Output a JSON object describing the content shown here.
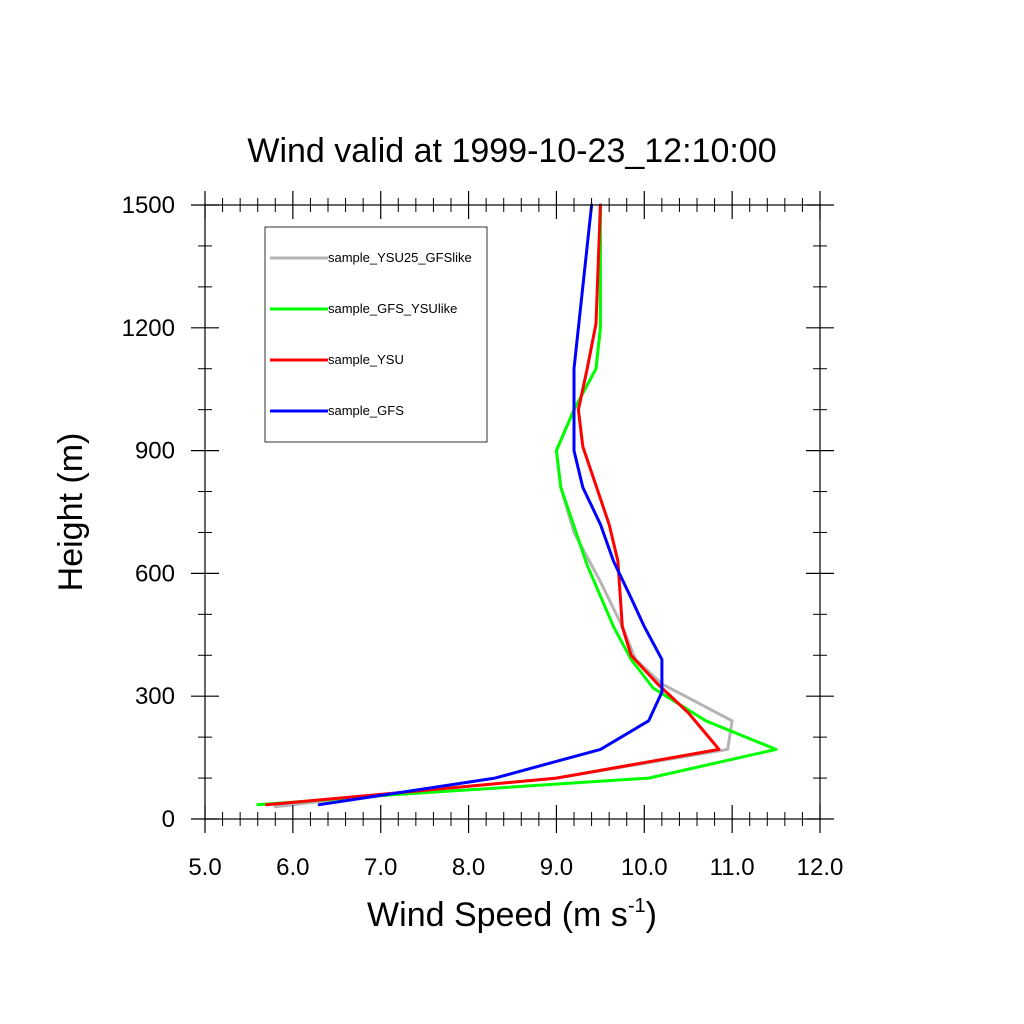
{
  "chart_data": {
    "type": "line",
    "title": "Wind valid at 1999-10-23_12:10:00",
    "xlabel": {
      "main": "Wind Speed (m s",
      "sup": "-1",
      "tail": ")"
    },
    "ylabel": "Height (m)",
    "xlim": [
      5.0,
      12.0
    ],
    "ylim": [
      0,
      1500
    ],
    "xticks": [
      {
        "value": 5,
        "label": "5.0"
      },
      {
        "value": 6,
        "label": "6.0"
      },
      {
        "value": 7,
        "label": "7.0"
      },
      {
        "value": 8,
        "label": "8.0"
      },
      {
        "value": 9,
        "label": "9.0"
      },
      {
        "value": 10,
        "label": "10.0"
      },
      {
        "value": 11,
        "label": "11.0"
      },
      {
        "value": 12,
        "label": "12.0"
      }
    ],
    "yticks": [
      {
        "value": 0,
        "label": "0"
      },
      {
        "value": 300,
        "label": "300"
      },
      {
        "value": 600,
        "label": "600"
      },
      {
        "value": 900,
        "label": "900"
      },
      {
        "value": 1200,
        "label": "1200"
      },
      {
        "value": 1500,
        "label": "1500"
      }
    ],
    "grid": false,
    "legend_position": "top-left",
    "series": [
      {
        "name": "sample_YSU25_GFSlike",
        "color": "#b4b4b4",
        "points": [
          [
            5.8,
            30
          ],
          [
            7.0,
            60
          ],
          [
            9.0,
            100
          ],
          [
            10.95,
            170
          ],
          [
            11.0,
            240
          ],
          [
            10.2,
            330
          ],
          [
            9.9,
            390
          ],
          [
            9.75,
            470
          ],
          [
            9.5,
            580
          ],
          [
            9.2,
            700
          ],
          [
            9.05,
            810
          ],
          [
            9.0,
            900
          ],
          [
            9.2,
            1000
          ],
          [
            9.45,
            1100
          ],
          [
            9.5,
            1200
          ],
          [
            9.5,
            1500
          ]
        ]
      },
      {
        "name": "sample_GFS_YSUlike",
        "color": "#00ff00",
        "points": [
          [
            5.6,
            35
          ],
          [
            7.2,
            60
          ],
          [
            10.05,
            100
          ],
          [
            11.5,
            170
          ],
          [
            10.7,
            240
          ],
          [
            10.1,
            320
          ],
          [
            9.85,
            390
          ],
          [
            9.65,
            470
          ],
          [
            9.35,
            620
          ],
          [
            9.05,
            810
          ],
          [
            9.0,
            900
          ],
          [
            9.2,
            1000
          ],
          [
            9.45,
            1100
          ],
          [
            9.5,
            1200
          ],
          [
            9.5,
            1500
          ]
        ]
      },
      {
        "name": "sample_YSU",
        "color": "#ff0000",
        "points": [
          [
            5.7,
            35
          ],
          [
            7.0,
            60
          ],
          [
            9.0,
            100
          ],
          [
            10.85,
            170
          ],
          [
            10.5,
            260
          ],
          [
            10.15,
            330
          ],
          [
            9.85,
            400
          ],
          [
            9.75,
            470
          ],
          [
            9.7,
            630
          ],
          [
            9.6,
            720
          ],
          [
            9.3,
            910
          ],
          [
            9.25,
            1000
          ],
          [
            9.35,
            1100
          ],
          [
            9.45,
            1210
          ],
          [
            9.5,
            1500
          ]
        ]
      },
      {
        "name": "sample_GFS",
        "color": "#0000ff",
        "points": [
          [
            6.3,
            35
          ],
          [
            8.3,
            100
          ],
          [
            9.5,
            170
          ],
          [
            10.05,
            240
          ],
          [
            10.2,
            310
          ],
          [
            10.2,
            390
          ],
          [
            10.0,
            470
          ],
          [
            9.85,
            540
          ],
          [
            9.65,
            630
          ],
          [
            9.5,
            720
          ],
          [
            9.3,
            810
          ],
          [
            9.2,
            900
          ],
          [
            9.2,
            1000
          ],
          [
            9.2,
            1100
          ],
          [
            9.25,
            1200
          ],
          [
            9.4,
            1500
          ]
        ]
      }
    ]
  }
}
